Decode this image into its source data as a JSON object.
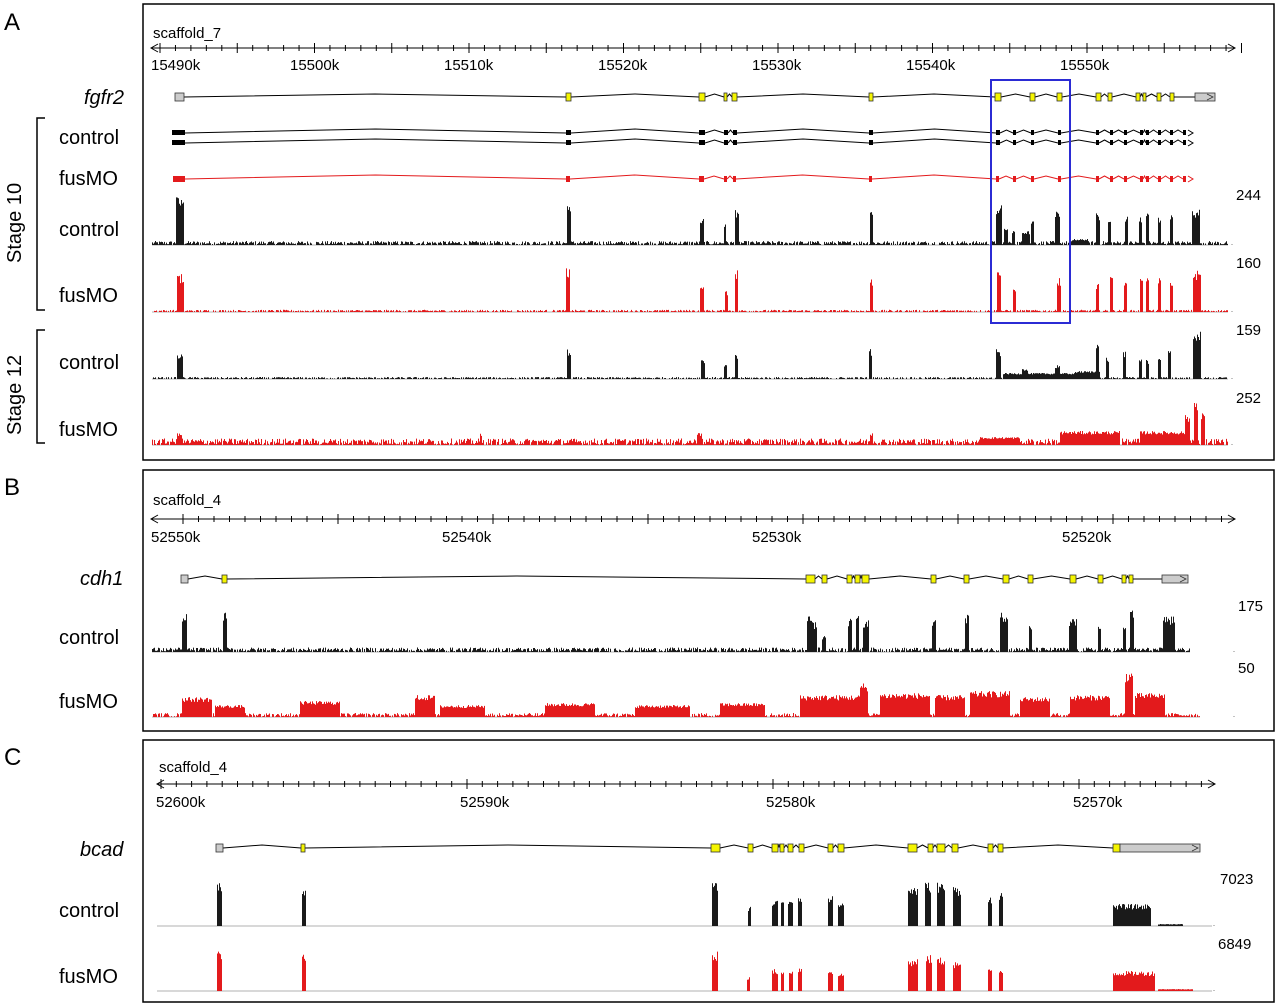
{
  "panels": [
    {
      "label": "A",
      "scaffold": "scaffold_7",
      "ticks": [
        "15490k",
        "15500k",
        "15510k",
        "15520k",
        "15530k",
        "15540k",
        "15550k"
      ],
      "gene": "fgfr2",
      "rows": [
        {
          "label": "control",
          "kind": "isoform",
          "color": "#000000"
        },
        {
          "label": "fusMO",
          "kind": "isoform",
          "color": "#e31a1c"
        },
        {
          "label": "control",
          "kind": "coverage",
          "color": "#1a1a1a",
          "max": "244"
        },
        {
          "label": "fusMO",
          "kind": "coverage",
          "color": "#e31a1c",
          "max": "160"
        },
        {
          "label": "control",
          "kind": "coverage",
          "color": "#1a1a1a",
          "max": "159"
        },
        {
          "label": "fusMO",
          "kind": "coverage",
          "color": "#e31a1c",
          "max": "252"
        }
      ],
      "stages": [
        "Stage 10",
        "Stage 12"
      ],
      "highlight_color": "#2b2bd4"
    },
    {
      "label": "B",
      "scaffold": "scaffold_4",
      "ticks": [
        "52550k",
        "52540k",
        "52530k",
        "52520k"
      ],
      "gene": "cdh1",
      "rows": [
        {
          "label": "control",
          "kind": "coverage",
          "color": "#1a1a1a",
          "max": "175"
        },
        {
          "label": "fusMO",
          "kind": "coverage",
          "color": "#e31a1c",
          "max": "50"
        }
      ]
    },
    {
      "label": "C",
      "scaffold": "scaffold_4",
      "ticks": [
        "52600k",
        "52590k",
        "52580k",
        "52570k"
      ],
      "gene": "bcad",
      "rows": [
        {
          "label": "control",
          "kind": "coverage",
          "color": "#1a1a1a",
          "max": "7023"
        },
        {
          "label": "fusMO",
          "kind": "coverage",
          "color": "#e31a1c",
          "max": "6849"
        }
      ]
    }
  ],
  "colors": {
    "exon": "#f5f500",
    "utr": "#cccccc",
    "control": "#1a1a1a",
    "fusmo": "#e31a1c"
  }
}
